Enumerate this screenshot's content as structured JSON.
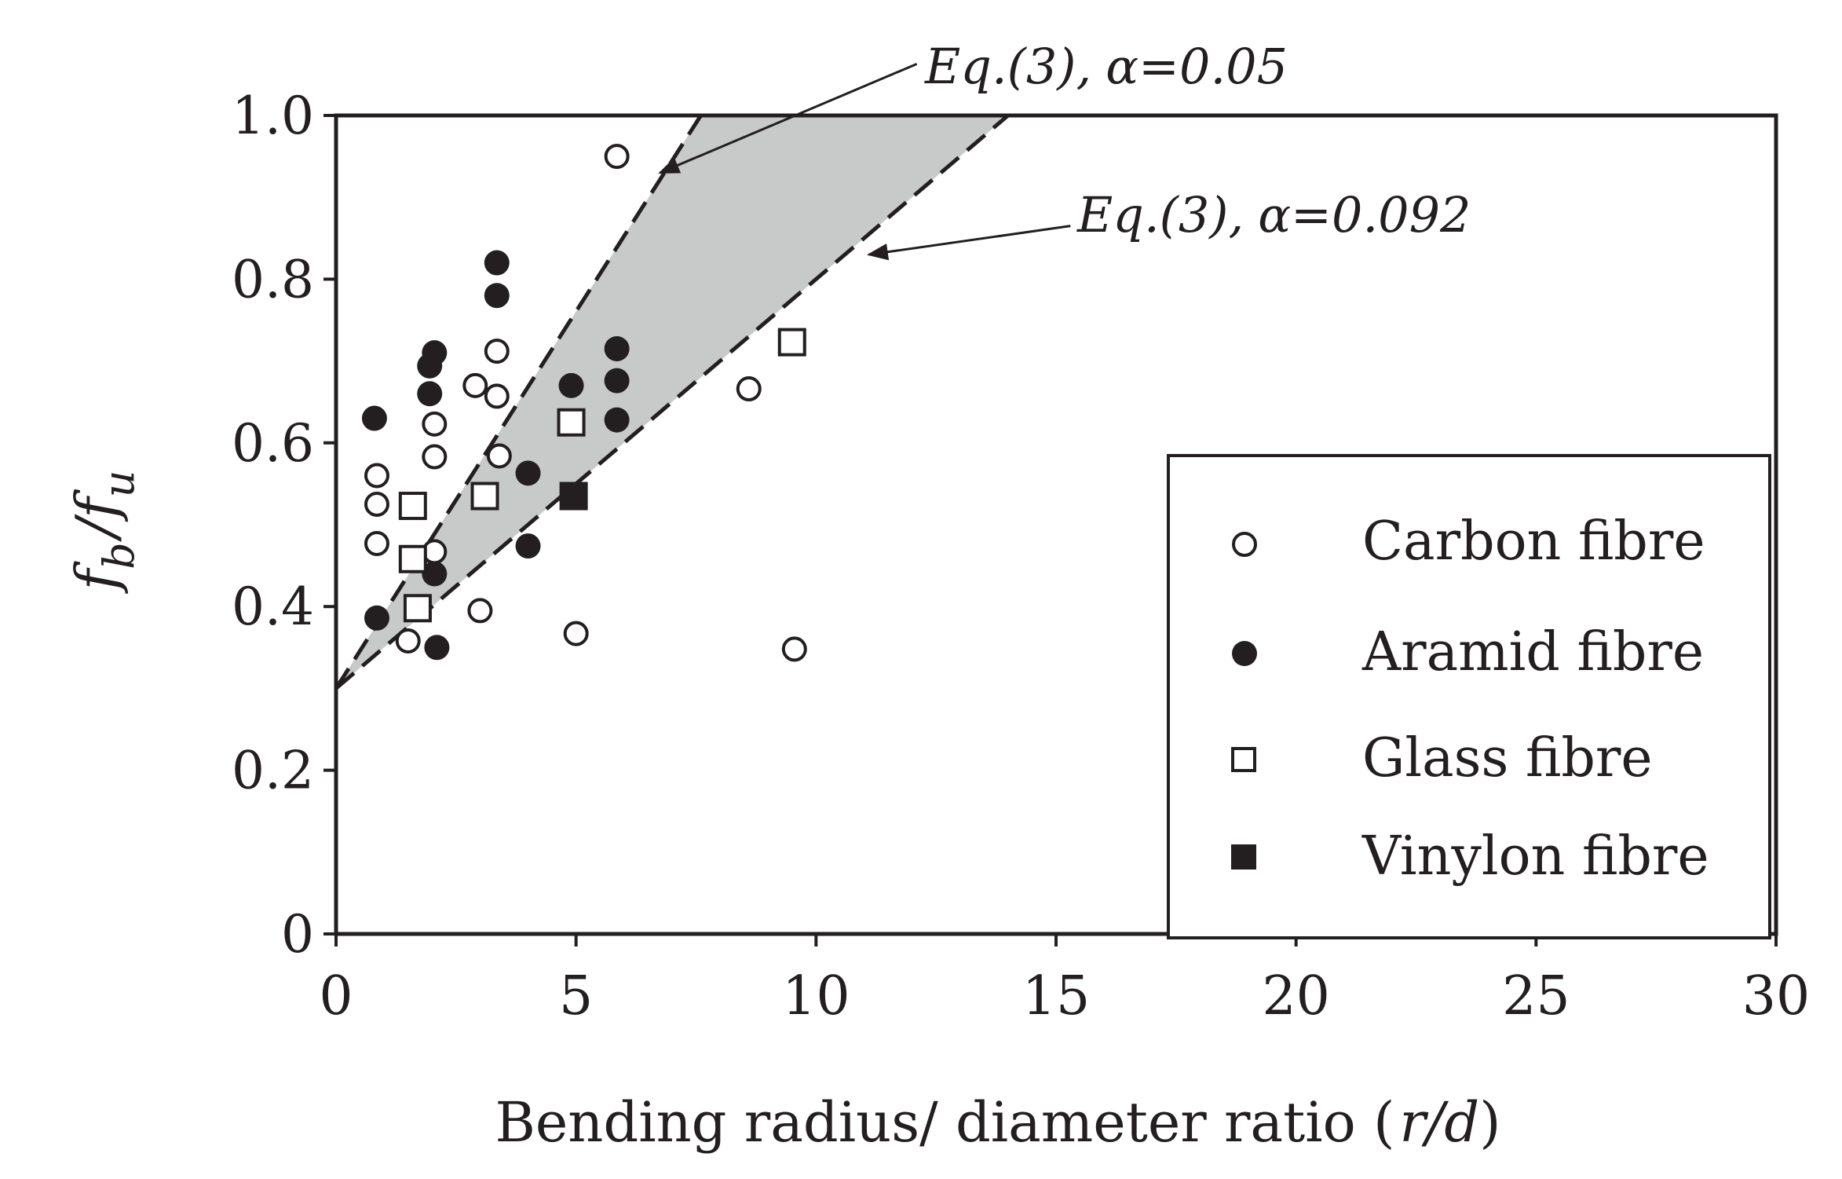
{
  "chart_data": {
    "type": "scatter",
    "xlabel": "Bending radius/ diameter ratio (",
    "xlabel_var": "r/d",
    "xlabel_close": ")",
    "ylabel_sym": "f",
    "ylabel_sub_b": "b",
    "ylabel_slash": "/",
    "ylabel_sub_u": "u",
    "xlim": [
      0,
      30
    ],
    "ylim": [
      0,
      1.0
    ],
    "xticks": [
      0,
      5,
      10,
      15,
      20,
      25,
      30
    ],
    "xtick_labels": [
      "0",
      "5",
      "10",
      "15",
      "20",
      "25",
      "30"
    ],
    "yticks": [
      0,
      0.2,
      0.4,
      0.6,
      0.8,
      1.0
    ],
    "ytick_labels": [
      "0",
      "0.2",
      "0.4",
      "0.6",
      "0.8",
      "1.0"
    ],
    "grid": false,
    "legend_position": "bottom-right",
    "series": [
      {
        "name": "Carbon fibre",
        "marker": "open-circle",
        "points": [
          [
            0.85,
            0.56
          ],
          [
            0.85,
            0.525
          ],
          [
            0.85,
            0.477
          ],
          [
            1.5,
            0.358
          ],
          [
            2.05,
            0.623
          ],
          [
            2.05,
            0.583
          ],
          [
            2.05,
            0.467
          ],
          [
            2.9,
            0.67
          ],
          [
            3.0,
            0.395
          ],
          [
            3.35,
            0.712
          ],
          [
            3.35,
            0.657
          ],
          [
            3.4,
            0.584
          ],
          [
            5.0,
            0.367
          ],
          [
            5.85,
            0.95
          ],
          [
            8.6,
            0.666
          ],
          [
            9.55,
            0.348
          ]
        ]
      },
      {
        "name": "Aramid fibre",
        "marker": "filled-circle",
        "points": [
          [
            0.8,
            0.63
          ],
          [
            0.85,
            0.386
          ],
          [
            1.95,
            0.694
          ],
          [
            2.05,
            0.71
          ],
          [
            1.95,
            0.66
          ],
          [
            2.05,
            0.44
          ],
          [
            2.1,
            0.35
          ],
          [
            3.35,
            0.82
          ],
          [
            3.35,
            0.78
          ],
          [
            4.0,
            0.563
          ],
          [
            4.0,
            0.474
          ],
          [
            4.9,
            0.67
          ],
          [
            5.85,
            0.715
          ],
          [
            5.85,
            0.676
          ],
          [
            5.85,
            0.628
          ]
        ]
      },
      {
        "name": "Glass fibre",
        "marker": "open-square",
        "points": [
          [
            1.6,
            0.523
          ],
          [
            1.6,
            0.458
          ],
          [
            1.7,
            0.398
          ],
          [
            3.1,
            0.535
          ],
          [
            4.9,
            0.625
          ],
          [
            9.5,
            0.723
          ]
        ]
      },
      {
        "name": "Vinylon fibre",
        "marker": "filled-square",
        "points": [
          [
            4.95,
            0.535
          ]
        ]
      }
    ],
    "bounds": [
      {
        "label_main": "Eq.(3),",
        "label_alpha": "α=0.05",
        "line": [
          [
            0,
            0.3
          ],
          [
            7.6,
            1.0
          ]
        ]
      },
      {
        "label_main": "Eq.(3),",
        "label_alpha": "α=0.092",
        "line": [
          [
            0,
            0.3
          ],
          [
            14.0,
            1.0
          ]
        ]
      }
    ],
    "annotation_arrows": [
      {
        "from": [
          12.1,
          1.063
        ],
        "to": [
          6.75,
          0.93
        ]
      },
      {
        "from": [
          15.3,
          0.865
        ],
        "to": [
          11.1,
          0.83
        ]
      }
    ],
    "band_fill": "#c8c9c9",
    "ink_color": "#231f20"
  }
}
